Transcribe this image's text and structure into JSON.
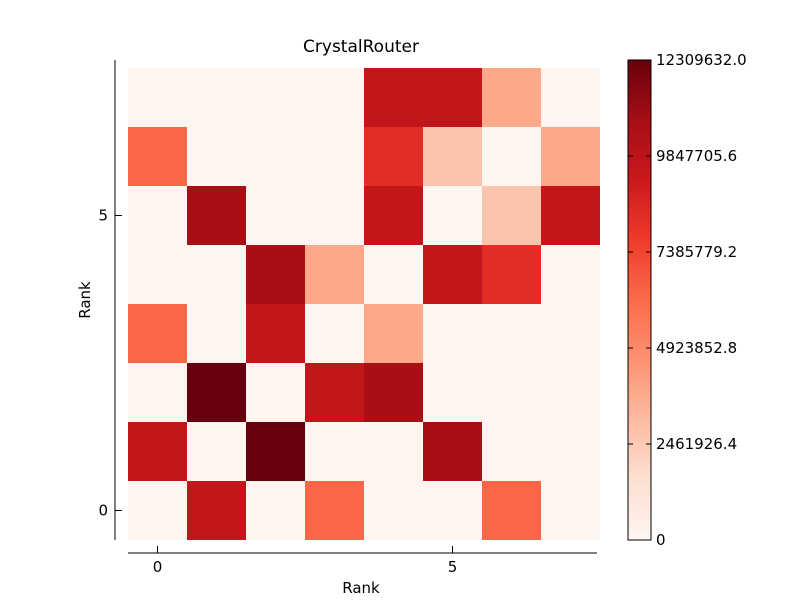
{
  "chart_data": {
    "type": "heatmap",
    "title": "CrystalRouter",
    "xlabel": "Rank",
    "ylabel": "Rank",
    "x_ticks": [
      0,
      5
    ],
    "y_ticks": [
      0,
      5
    ],
    "x_categories": [
      0,
      1,
      2,
      3,
      4,
      5,
      6,
      7
    ],
    "y_categories": [
      0,
      1,
      2,
      3,
      4,
      5,
      6,
      7
    ],
    "colormap": "Reds",
    "colors": {
      "low": "#fff5f0",
      "high": "#67000d"
    },
    "vmin": 0,
    "vmax": 12309632.0,
    "colorbar_ticks": [
      "0",
      "2461926.4",
      "4923852.8",
      "7385779.2",
      "9847705.6",
      "12309632.0"
    ],
    "rows_from_y0": [
      [
        0,
        9600000,
        0,
        6300000,
        0,
        0,
        6300000,
        0
      ],
      [
        9600000,
        0,
        12300000,
        0,
        0,
        10700000,
        0,
        0
      ],
      [
        0,
        12300000,
        0,
        9600000,
        10700000,
        0,
        0,
        0
      ],
      [
        6300000,
        0,
        9600000,
        0,
        3800000,
        0,
        0,
        0
      ],
      [
        0,
        0,
        10700000,
        3800000,
        0,
        9600000,
        8300000,
        0
      ],
      [
        0,
        10700000,
        0,
        0,
        9600000,
        0,
        2700000,
        9600000
      ],
      [
        6300000,
        0,
        0,
        0,
        8300000,
        2700000,
        0,
        3800000
      ],
      [
        0,
        0,
        0,
        0,
        9600000,
        9600000,
        3800000,
        0
      ]
    ]
  }
}
